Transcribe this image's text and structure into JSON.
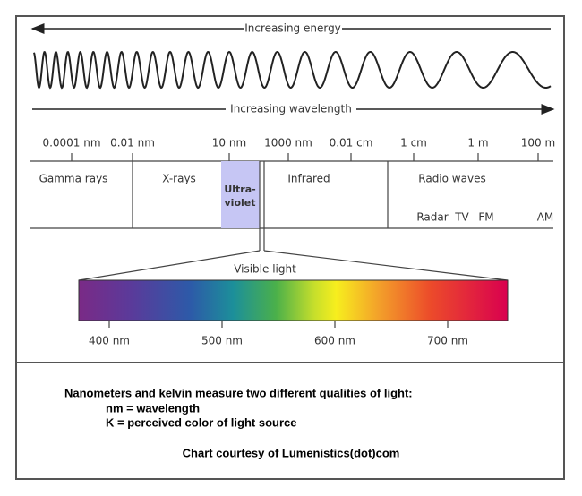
{
  "header": {
    "energy_label": "Increasing energy",
    "wavelength_label": "Increasing wavelength"
  },
  "scale": [
    "0.0001 nm",
    "0.01 nm",
    "10 nm",
    "1000 nm",
    "0.01 cm",
    "1 cm",
    "1 m",
    "100 m"
  ],
  "bands": {
    "gamma": "Gamma rays",
    "xray": "X-rays",
    "ultraviolet": [
      "Ultra-",
      "violet"
    ],
    "infrared": "Infrared",
    "radio": "Radio waves",
    "radio_sub": [
      "Radar",
      "TV",
      "FM",
      "AM"
    ]
  },
  "visible": {
    "label": "Visible light",
    "ticks": [
      "400 nm",
      "500 nm",
      "600 nm",
      "700 nm"
    ]
  },
  "footer": {
    "heading": "Nanometers and kelvin measure two different qualities of light:",
    "lines": [
      "nm = wavelength",
      "K = perceived color of light source"
    ],
    "credit": "Chart courtesy of Lumenistics(dot)com"
  }
}
